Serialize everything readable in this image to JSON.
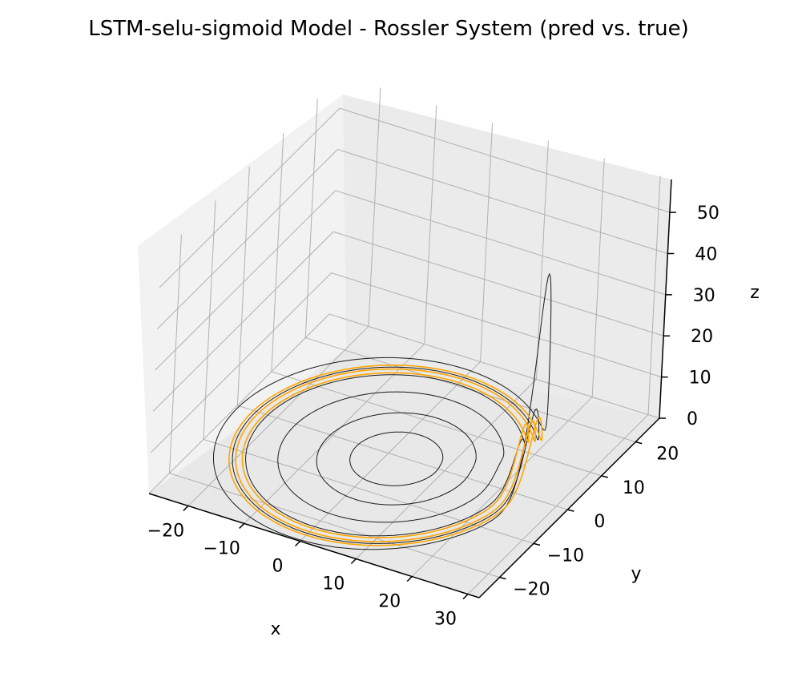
{
  "chart_data": {
    "type": "line3d",
    "title": "LSTM-selu-sigmoid Model - Rossler System (pred vs. true)",
    "xlabel": "x",
    "ylabel": "y",
    "zlabel": "z",
    "xlim": [
      -27,
      32
    ],
    "ylim": [
      -26,
      27
    ],
    "zlim": [
      0,
      58
    ],
    "xticks": [
      -20,
      -10,
      0,
      10,
      20,
      30
    ],
    "xtick_labels": [
      "−20",
      "−10",
      "0",
      "10",
      "20",
      "30"
    ],
    "yticks": [
      -20,
      -10,
      0,
      10,
      20
    ],
    "ytick_labels": [
      "−20",
      "−10",
      "0",
      "10",
      "20"
    ],
    "zticks": [
      0,
      10,
      20,
      30,
      40,
      50
    ],
    "ztick_labels": [
      "0",
      "10",
      "20",
      "30",
      "40",
      "50"
    ],
    "grid": true,
    "colors": {
      "true_trajectory": "#1a1a1a",
      "predicted_trajectory": "#ffa500",
      "pane": "#f2f2f2",
      "grid": "#b0b0b0"
    },
    "series": [
      {
        "role": "true",
        "color": "#1a1a1a",
        "description_points": "Rossler attractor trajectory: spiral loops in the x-y plane with radii ~7 to ~25 and a spike reaching z~49 near x~22, y~2",
        "loops": [
          {
            "cx": 2,
            "cy": -1,
            "r": 7,
            "zmax": 0.3
          },
          {
            "cx": 2,
            "cy": -1,
            "r": 12,
            "zmax": 0.5
          },
          {
            "cx": 1,
            "cy": -1,
            "r": 17,
            "zmax": 2
          },
          {
            "cx": 0,
            "cy": -1,
            "r": 21,
            "zmax": 8
          },
          {
            "cx": 0,
            "cy": -1,
            "r": 23,
            "zmax": 16
          },
          {
            "cx": -1,
            "cy": -1,
            "r": 25,
            "zmax": 49
          }
        ]
      },
      {
        "role": "pred",
        "color": "#ffa500",
        "loops": [
          {
            "cx": 0,
            "cy": -1,
            "r": 21.5,
            "zmax": 12
          },
          {
            "cx": 0,
            "cy": -1,
            "r": 22.5,
            "zmax": 13
          },
          {
            "cx": 0,
            "cy": -1,
            "r": 23.5,
            "zmax": 14
          }
        ]
      }
    ]
  }
}
